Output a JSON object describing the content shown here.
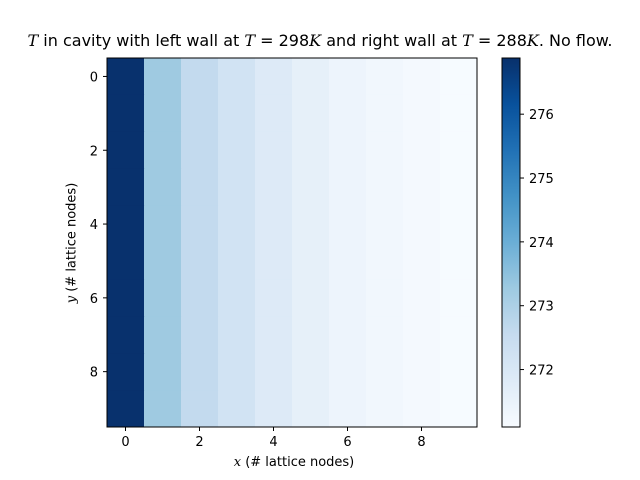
{
  "chart_data": {
    "type": "heatmap",
    "title": "T in cavity with left wall at T=298K and right wall at T=288K. No flow.",
    "title_parts": {
      "sym_t": "T",
      "text_1": " in cavity with left wall at ",
      "sym_left": "T",
      "text_2": " = 298",
      "unit_left": "K",
      "text_3": " and right wall at ",
      "sym_right": "T",
      "text_4": " = 288",
      "unit_right": "K",
      "text_5": ". No flow."
    },
    "xlabel": "x (# lattice nodes)",
    "xlabel_parts": {
      "sym": "x",
      "rest": " (# lattice nodes)"
    },
    "ylabel": "y (# lattice nodes)",
    "ylabel_parts": {
      "sym": "y",
      "rest": " (# lattice nodes)"
    },
    "x_ticks": [
      0,
      2,
      4,
      6,
      8
    ],
    "y_ticks": [
      0,
      2,
      4,
      6,
      8
    ],
    "xlim": [
      -0.5,
      9.5
    ],
    "ylim": [
      9.5,
      -0.5
    ],
    "columns": [
      0,
      1,
      2,
      3,
      4,
      5,
      6,
      7,
      8,
      9
    ],
    "rows": [
      0,
      1,
      2,
      3,
      4,
      5,
      6,
      7,
      8,
      9
    ],
    "column_values": [
      276.85,
      273.25,
      272.6,
      272.2,
      271.85,
      271.6,
      271.4,
      271.28,
      271.18,
      271.12
    ],
    "colormap": "Blues",
    "colormap_stops": [
      "#f7fbff",
      "#deebf7",
      "#c6dbef",
      "#9ecae1",
      "#6baed6",
      "#4292c6",
      "#2171b5",
      "#08519c",
      "#08306b"
    ],
    "colorbar": {
      "vmin": 271.1,
      "vmax": 276.88,
      "ticks": [
        272,
        273,
        274,
        275,
        276
      ]
    }
  }
}
